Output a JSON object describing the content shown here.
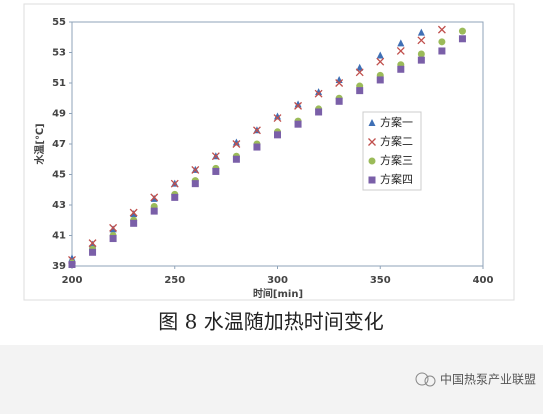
{
  "chart_data": {
    "type": "scatter",
    "title": "图 8 水温随加热时间变化",
    "x_label": "时间[min]",
    "y_label": "水温[℃]",
    "xlim": [
      200,
      400
    ],
    "xticks": [
      200,
      250,
      300,
      350,
      400
    ],
    "ylim": [
      39,
      55
    ],
    "yticks": [
      39,
      41,
      43,
      45,
      47,
      49,
      51,
      53,
      55
    ],
    "grid": false,
    "legend": "right",
    "series": [
      {
        "name": "方案一",
        "color": "#3f6fb5",
        "marker": "triangle",
        "x": [
          200,
          210,
          220,
          230,
          240,
          250,
          260,
          270,
          280,
          290,
          300,
          310,
          320,
          330,
          340,
          350,
          360,
          370
        ],
        "values": [
          39.5,
          40.4,
          41.4,
          42.4,
          43.4,
          44.4,
          45.3,
          46.2,
          47.1,
          47.9,
          48.8,
          49.6,
          50.4,
          51.2,
          52.0,
          52.8,
          53.6,
          54.3
        ]
      },
      {
        "name": "方案二",
        "color": "#c0504d",
        "marker": "x",
        "x": [
          200,
          210,
          220,
          230,
          240,
          250,
          260,
          270,
          280,
          290,
          300,
          310,
          320,
          330,
          340,
          350,
          360,
          370,
          380
        ],
        "values": [
          39.4,
          40.5,
          41.5,
          42.5,
          43.5,
          44.4,
          45.3,
          46.2,
          47.0,
          47.9,
          48.7,
          49.5,
          50.3,
          51.0,
          51.7,
          52.4,
          53.1,
          53.8,
          54.5
        ]
      },
      {
        "name": "方案三",
        "color": "#9bbb59",
        "marker": "circle",
        "x": [
          200,
          210,
          220,
          230,
          240,
          250,
          260,
          270,
          280,
          290,
          300,
          310,
          320,
          330,
          340,
          350,
          360,
          370,
          380,
          390
        ],
        "values": [
          39.2,
          40.1,
          41.0,
          42.0,
          42.9,
          43.7,
          44.6,
          45.4,
          46.2,
          47.0,
          47.8,
          48.5,
          49.3,
          50.0,
          50.8,
          51.5,
          52.2,
          52.9,
          53.7,
          54.4
        ]
      },
      {
        "name": "方案四",
        "color": "#7a5fa8",
        "marker": "square",
        "x": [
          200,
          210,
          220,
          230,
          240,
          250,
          260,
          270,
          280,
          290,
          300,
          310,
          320,
          330,
          340,
          350,
          360,
          370,
          380,
          390
        ],
        "values": [
          39.1,
          39.9,
          40.8,
          41.8,
          42.6,
          43.5,
          44.4,
          45.2,
          46.0,
          46.8,
          47.6,
          48.3,
          49.1,
          49.8,
          50.5,
          51.2,
          51.9,
          52.5,
          53.1,
          53.9
        ]
      }
    ]
  },
  "watermark": "中国热泵产业联盟"
}
